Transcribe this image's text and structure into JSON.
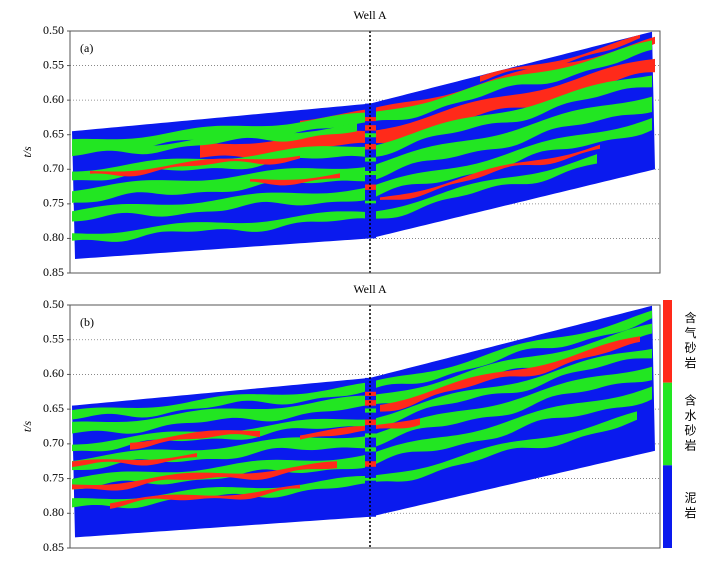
{
  "chart_data": [
    {
      "type": "section",
      "title": "Well A",
      "panel_label": "(a)",
      "ylabel": "t/s",
      "ylim": [
        0.5,
        0.85
      ],
      "y_inverted": true,
      "yticks": [
        {
          "value": 0.5,
          "label": "0.50"
        },
        {
          "value": 0.55,
          "label": "0.55"
        },
        {
          "value": 0.6,
          "label": "0.60"
        },
        {
          "value": 0.65,
          "label": "0.65"
        },
        {
          "value": 0.7,
          "label": "0.70"
        },
        {
          "value": 0.75,
          "label": "0.75"
        },
        {
          "value": 0.8,
          "label": "0.80"
        },
        {
          "value": 0.85,
          "label": "0.85"
        }
      ],
      "grid": true
    },
    {
      "type": "section",
      "title": "Well A",
      "panel_label": "(b)",
      "ylabel": "t/s",
      "ylim": [
        0.5,
        0.85
      ],
      "y_inverted": true,
      "yticks": [
        {
          "value": 0.5,
          "label": "0.50"
        },
        {
          "value": 0.55,
          "label": "0.55"
        },
        {
          "value": 0.6,
          "label": "0.60"
        },
        {
          "value": 0.65,
          "label": "0.65"
        },
        {
          "value": 0.7,
          "label": "0.70"
        },
        {
          "value": 0.75,
          "label": "0.75"
        },
        {
          "value": 0.8,
          "label": "0.80"
        },
        {
          "value": 0.85,
          "label": "0.85"
        }
      ],
      "grid": true,
      "classes": [
        {
          "name": "含气砂岩",
          "color": "#ff2a1a"
        },
        {
          "name": "含水砂岩",
          "color": "#22e622"
        },
        {
          "name": "泥岩",
          "color": "#0a1aee"
        }
      ]
    }
  ]
}
